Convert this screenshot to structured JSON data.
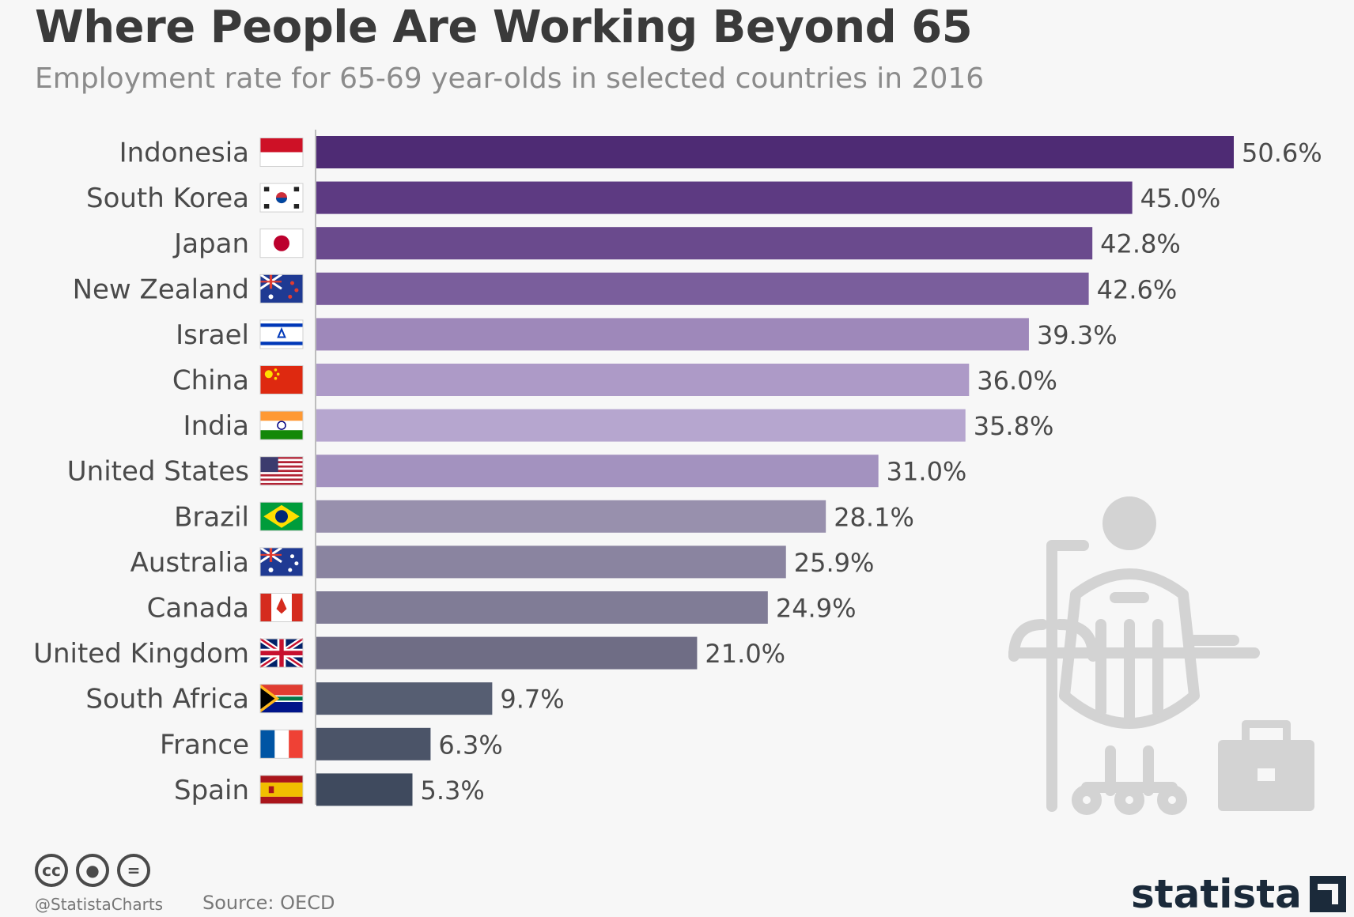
{
  "title": "Where People Are Working Beyond 65",
  "subtitle": "Employment rate for 65-69 year-olds in selected countries in 2016",
  "footer": {
    "handle": "@StatistaCharts",
    "source": "Source: OECD",
    "brand": "statista",
    "license_icons": [
      "cc-icon",
      "attribution-icon",
      "no-derivatives-icon"
    ]
  },
  "chart_data": {
    "type": "bar",
    "orientation": "horizontal",
    "title": "Where People Are Working Beyond 65",
    "subtitle": "Employment rate for 65-69 year-olds in selected countries in 2016",
    "xlabel": "",
    "ylabel": "",
    "unit": "%",
    "categories": [
      "Indonesia",
      "South Korea",
      "Japan",
      "New Zealand",
      "Israel",
      "China",
      "India",
      "United States",
      "Brazil",
      "Australia",
      "Canada",
      "United Kingdom",
      "South Africa",
      "France",
      "Spain"
    ],
    "values": [
      50.6,
      45.0,
      42.8,
      42.6,
      39.3,
      36.0,
      35.8,
      31.0,
      28.1,
      25.9,
      24.9,
      21.0,
      9.7,
      6.3,
      5.3
    ],
    "value_labels": [
      "50.6%",
      "45.0%",
      "42.8%",
      "42.6%",
      "39.3%",
      "36.0%",
      "35.8%",
      "31.0%",
      "28.1%",
      "25.9%",
      "24.9%",
      "21.0%",
      "9.7%",
      "6.3%",
      "5.3%"
    ],
    "flags": [
      "indonesia-flag",
      "south-korea-flag",
      "japan-flag",
      "new-zealand-flag",
      "israel-flag",
      "china-flag",
      "india-flag",
      "united-states-flag",
      "brazil-flag",
      "australia-flag",
      "canada-flag",
      "united-kingdom-flag",
      "south-africa-flag",
      "france-flag",
      "spain-flag"
    ],
    "bar_colors": [
      "#4e2b74",
      "#5d3a82",
      "#6a4a8d",
      "#7a5e9c",
      "#9e88ba",
      "#ad9ac7",
      "#b6a6cf",
      "#a392bf",
      "#9890ad",
      "#8a84a0",
      "#807c96",
      "#6f6d85",
      "#565e72",
      "#4b5468",
      "#3f4a5e"
    ],
    "xlim": [
      0,
      50.6
    ],
    "grid": false,
    "legend": "none"
  }
}
